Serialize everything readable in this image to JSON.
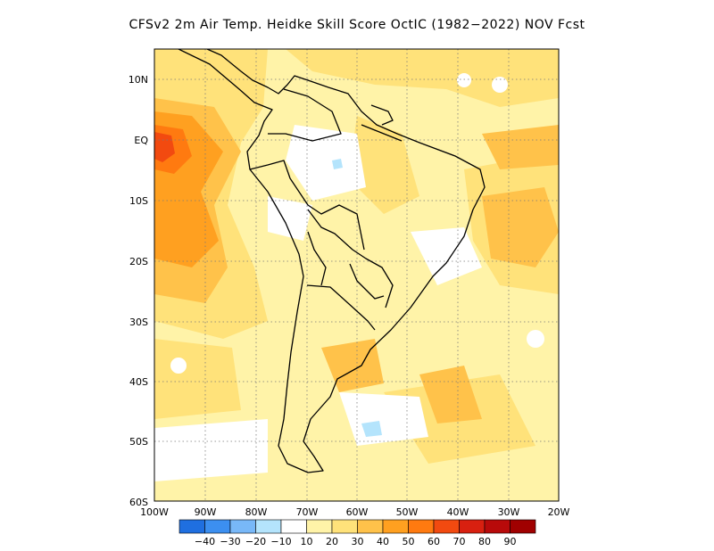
{
  "title": "CFSv2  2m Air Temp. Heidke Skill Score OctIC (1982−2022) NOV Fcst",
  "map": {
    "lat_labels": [
      "10N",
      "EQ",
      "10S",
      "20S",
      "30S",
      "40S",
      "50S",
      "60S"
    ],
    "lon_labels": [
      "100W",
      "90W",
      "80W",
      "70W",
      "60W",
      "50W",
      "40W",
      "30W",
      "20W"
    ],
    "lon_range": [
      -100,
      -20
    ],
    "lat_range": [
      -60,
      15
    ],
    "grid": "dotted"
  },
  "colorbar": {
    "labels": [
      "−40",
      "−30",
      "−20",
      "−10",
      "10",
      "20",
      "30",
      "40",
      "50",
      "60",
      "70",
      "80",
      "90"
    ],
    "colors": [
      "#1f6fe0",
      "#3c8ff0",
      "#78b8f8",
      "#b4e4fc",
      "#ffffff",
      "#fff3a8",
      "#ffe27a",
      "#ffc24a",
      "#ffa020",
      "#ff7a10",
      "#f24a10",
      "#d82010",
      "#b80a0a",
      "#a00000"
    ]
  }
}
